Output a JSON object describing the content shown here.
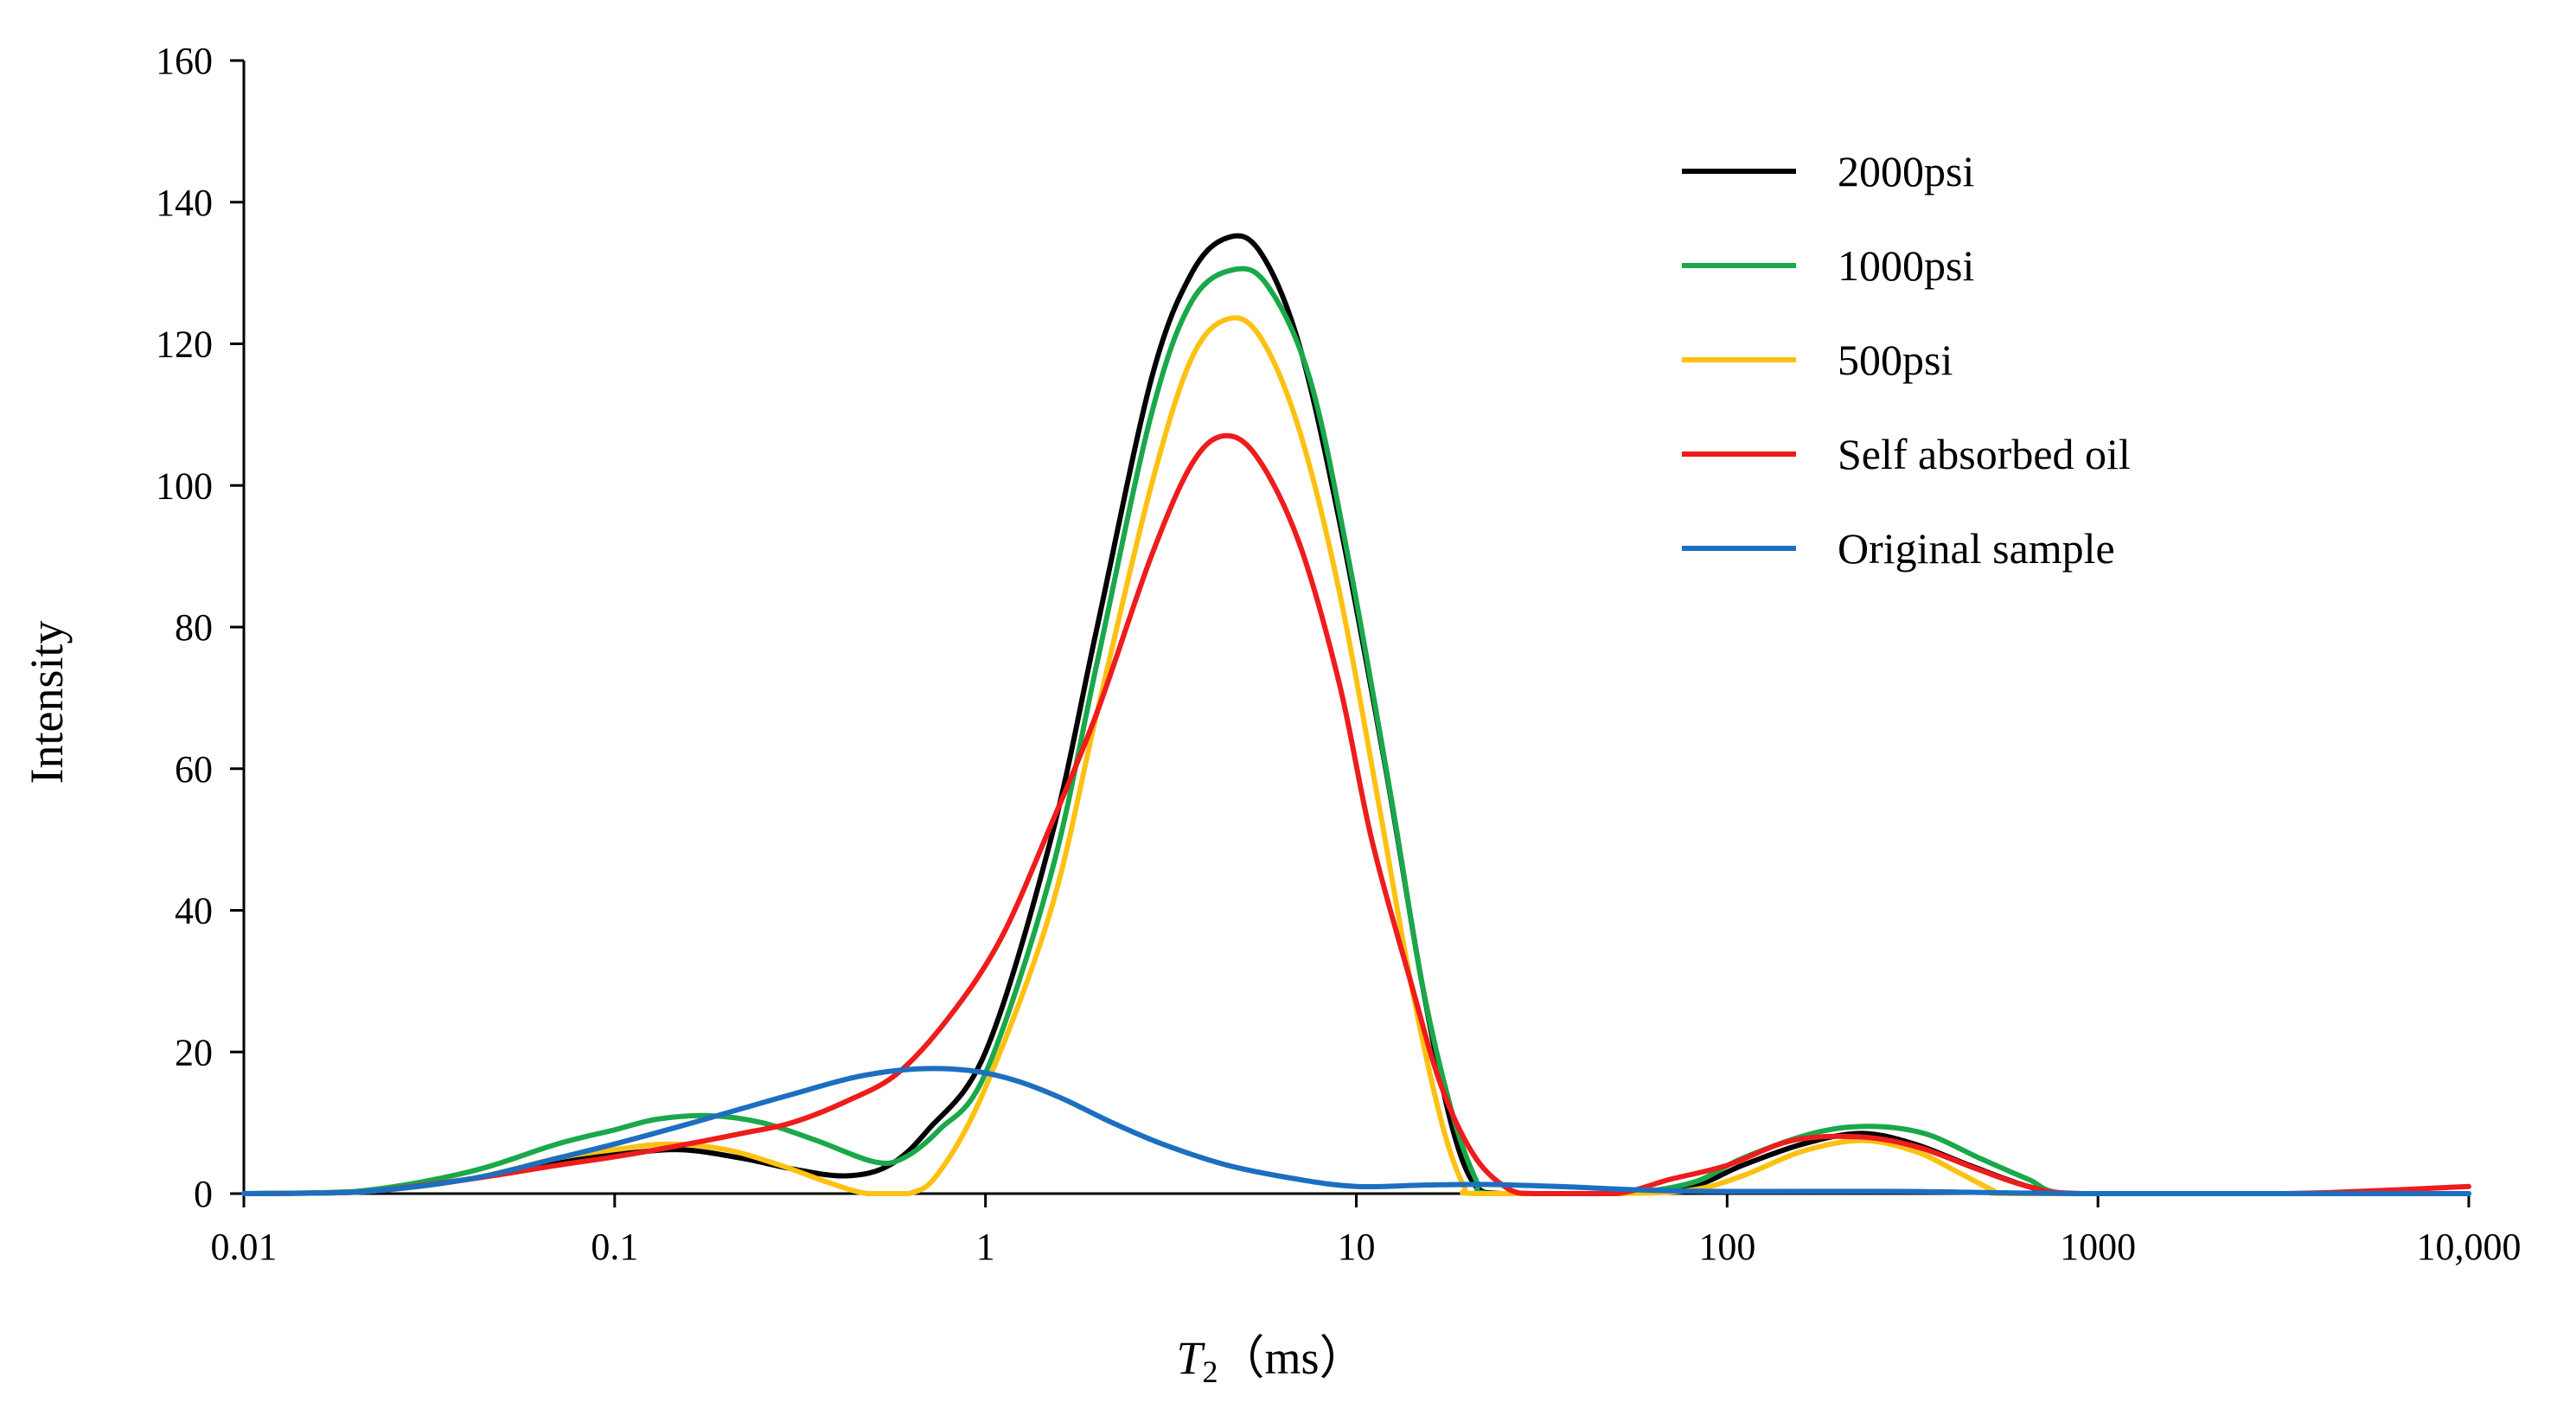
{
  "chart_data": {
    "type": "line",
    "title": "",
    "xlabel_main": "T",
    "xlabel_sub": "2",
    "xlabel_unit": "（ms）",
    "ylabel": "Intensity",
    "xscale": "log",
    "xlim": [
      0.01,
      10000
    ],
    "ylim": [
      0,
      160
    ],
    "xticks": [
      0.01,
      0.1,
      1,
      10,
      100,
      1000,
      10000
    ],
    "xtick_labels": [
      "0.01",
      "0.1",
      "1",
      "10",
      "100",
      "1000",
      "10,000"
    ],
    "yticks": [
      0,
      20,
      40,
      60,
      80,
      100,
      120,
      140,
      160
    ],
    "ytick_labels": [
      "0",
      "20",
      "40",
      "60",
      "80",
      "100",
      "120",
      "140",
      "160"
    ],
    "legend_position": "top-right",
    "series": [
      {
        "name": "2000psi",
        "color": "#000000",
        "points": [
          [
            0.01,
            0
          ],
          [
            0.02,
            0.2
          ],
          [
            0.04,
            2
          ],
          [
            0.07,
            4.5
          ],
          [
            0.1,
            5.5
          ],
          [
            0.15,
            6.2
          ],
          [
            0.22,
            5
          ],
          [
            0.3,
            3.5
          ],
          [
            0.42,
            2.5
          ],
          [
            0.55,
            4
          ],
          [
            0.7,
            9
          ],
          [
            1,
            20
          ],
          [
            1.5,
            50
          ],
          [
            2,
            80
          ],
          [
            2.8,
            115
          ],
          [
            3.6,
            130
          ],
          [
            4.5,
            135
          ],
          [
            5.5,
            133
          ],
          [
            7,
            120
          ],
          [
            9,
            95
          ],
          [
            12,
            60
          ],
          [
            15,
            30
          ],
          [
            18,
            10
          ],
          [
            21,
            1
          ],
          [
            25,
            0
          ],
          [
            50,
            0
          ],
          [
            80,
            1
          ],
          [
            110,
            4
          ],
          [
            160,
            7
          ],
          [
            230,
            8.5
          ],
          [
            320,
            7
          ],
          [
            450,
            4
          ],
          [
            650,
            1
          ],
          [
            850,
            0
          ],
          [
            2000,
            0
          ],
          [
            5000,
            0
          ],
          [
            10000,
            0
          ]
        ]
      },
      {
        "name": "1000psi",
        "color": "#1aa84a",
        "points": [
          [
            0.01,
            0
          ],
          [
            0.02,
            0.3
          ],
          [
            0.04,
            3
          ],
          [
            0.07,
            7
          ],
          [
            0.1,
            9
          ],
          [
            0.13,
            10.5
          ],
          [
            0.18,
            11
          ],
          [
            0.25,
            10
          ],
          [
            0.35,
            7.5
          ],
          [
            0.5,
            4.5
          ],
          [
            0.6,
            5
          ],
          [
            0.75,
            9
          ],
          [
            1,
            17
          ],
          [
            1.5,
            45
          ],
          [
            2,
            75
          ],
          [
            2.8,
            110
          ],
          [
            3.6,
            126
          ],
          [
            4.7,
            130.5
          ],
          [
            5.8,
            128
          ],
          [
            7.5,
            115
          ],
          [
            9.5,
            90
          ],
          [
            12.5,
            55
          ],
          [
            15,
            30
          ],
          [
            18,
            12
          ],
          [
            21,
            2
          ],
          [
            23,
            0
          ],
          [
            50,
            0
          ],
          [
            80,
            1.5
          ],
          [
            110,
            5
          ],
          [
            170,
            8.5
          ],
          [
            240,
            9.5
          ],
          [
            340,
            8.5
          ],
          [
            480,
            5
          ],
          [
            650,
            2
          ],
          [
            830,
            0
          ],
          [
            2000,
            0
          ],
          [
            5000,
            0
          ],
          [
            10000,
            0
          ]
        ]
      },
      {
        "name": "500psi",
        "color": "#fec112",
        "points": [
          [
            0.01,
            0
          ],
          [
            0.02,
            0.2
          ],
          [
            0.04,
            2
          ],
          [
            0.07,
            5
          ],
          [
            0.1,
            6.2
          ],
          [
            0.14,
            7
          ],
          [
            0.2,
            6.2
          ],
          [
            0.28,
            4
          ],
          [
            0.38,
            1.5
          ],
          [
            0.48,
            0
          ],
          [
            0.62,
            0
          ],
          [
            0.75,
            3
          ],
          [
            1,
            15
          ],
          [
            1.5,
            40
          ],
          [
            2,
            68
          ],
          [
            2.8,
            100
          ],
          [
            3.6,
            118
          ],
          [
            4.5,
            123.5
          ],
          [
            5.5,
            121
          ],
          [
            7,
            108
          ],
          [
            9,
            85
          ],
          [
            11.5,
            55
          ],
          [
            14,
            30
          ],
          [
            17,
            10
          ],
          [
            19.5,
            1
          ],
          [
            21,
            0
          ],
          [
            50,
            0
          ],
          [
            80,
            0.5
          ],
          [
            110,
            2.5
          ],
          [
            160,
            6
          ],
          [
            230,
            7.5
          ],
          [
            320,
            6
          ],
          [
            420,
            3
          ],
          [
            520,
            0.5
          ],
          [
            580,
            0
          ],
          [
            2000,
            0
          ],
          [
            5000,
            0
          ],
          [
            10000,
            0
          ]
        ]
      },
      {
        "name": "Self absorbed oil",
        "color": "#ee1c1c",
        "points": [
          [
            0.01,
            0
          ],
          [
            0.02,
            0.2
          ],
          [
            0.04,
            2
          ],
          [
            0.07,
            4
          ],
          [
            0.1,
            5.2
          ],
          [
            0.15,
            6.8
          ],
          [
            0.22,
            8.5
          ],
          [
            0.3,
            10
          ],
          [
            0.42,
            13
          ],
          [
            0.58,
            17
          ],
          [
            0.8,
            25
          ],
          [
            1.1,
            36
          ],
          [
            1.5,
            52
          ],
          [
            2,
            68
          ],
          [
            2.8,
            90
          ],
          [
            3.6,
            103
          ],
          [
            4.4,
            107
          ],
          [
            5.4,
            104
          ],
          [
            7,
            92
          ],
          [
            9,
            72
          ],
          [
            11,
            50
          ],
          [
            14,
            30
          ],
          [
            17,
            15
          ],
          [
            21,
            5
          ],
          [
            26,
            0.5
          ],
          [
            30,
            0
          ],
          [
            50,
            0
          ],
          [
            70,
            2
          ],
          [
            100,
            4
          ],
          [
            150,
            7.5
          ],
          [
            230,
            8
          ],
          [
            330,
            6.5
          ],
          [
            470,
            3.5
          ],
          [
            650,
            1
          ],
          [
            900,
            0
          ],
          [
            3000,
            0
          ],
          [
            5000,
            0.3
          ],
          [
            10000,
            1
          ]
        ]
      },
      {
        "name": "Original sample",
        "color": "#1c6fc0",
        "points": [
          [
            0.01,
            0
          ],
          [
            0.02,
            0.2
          ],
          [
            0.04,
            2
          ],
          [
            0.07,
            5
          ],
          [
            0.1,
            7
          ],
          [
            0.15,
            9.5
          ],
          [
            0.22,
            12
          ],
          [
            0.3,
            14
          ],
          [
            0.45,
            16.5
          ],
          [
            0.65,
            17.6
          ],
          [
            0.9,
            17.4
          ],
          [
            1.2,
            16
          ],
          [
            1.6,
            13.5
          ],
          [
            2.2,
            10
          ],
          [
            3,
            7
          ],
          [
            4.5,
            4
          ],
          [
            7,
            2
          ],
          [
            10,
            1
          ],
          [
            15,
            1.2
          ],
          [
            22,
            1.3
          ],
          [
            35,
            1
          ],
          [
            60,
            0.5
          ],
          [
            100,
            0.3
          ],
          [
            300,
            0.3
          ],
          [
            1000,
            0
          ],
          [
            10000,
            0
          ]
        ]
      }
    ]
  }
}
